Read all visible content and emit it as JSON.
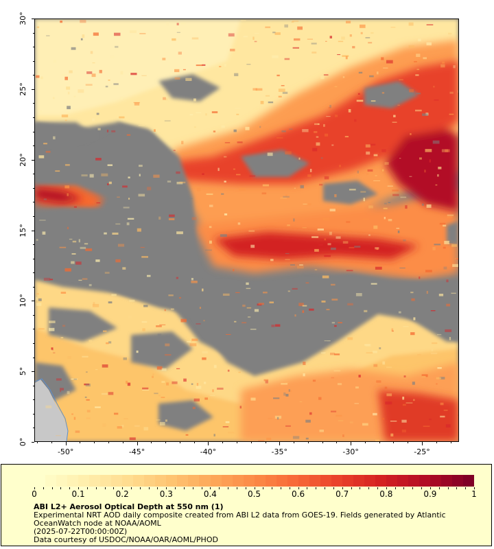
{
  "map": {
    "y_axis": {
      "labels": [
        "0°",
        "5°",
        "10°",
        "15°",
        "20°",
        "25°",
        "30°"
      ],
      "range": [
        0,
        30
      ]
    },
    "x_axis": {
      "labels": [
        "-50°",
        "-45°",
        "-40°",
        "-35°",
        "-30°",
        "-25°"
      ],
      "range": [
        -52.2,
        -22.4
      ]
    },
    "colors": {
      "no_data": "#808080",
      "land": "#c8c8c8",
      "coast": "#5b8fd0"
    }
  },
  "legend": {
    "colorbar_ticks": [
      "0",
      "0.1",
      "0.2",
      "0.3",
      "0.4",
      "0.5",
      "0.6",
      "0.7",
      "0.8",
      "0.9",
      "1"
    ],
    "colorbar_range": [
      0,
      1
    ],
    "colorbar_colors": [
      "#ffffcc",
      "#ffefae",
      "#ffde92",
      "#fec673",
      "#fda95a",
      "#fc8a46",
      "#f76836",
      "#e9402a",
      "#d32021",
      "#b20c25",
      "#800026"
    ],
    "background": "#ffffcc",
    "title": "ABI L2+ Aerosol Optical Depth at 550 nm (1)",
    "description_line1": "Experimental NRT AOD daily composite created from ABI L2 data from GOES-19. Fields generated by Atlantic",
    "description_line2": "OceanWatch node at NOAA/AOML",
    "date": "(2025-07-22T00:00:00Z)",
    "credit": "Data courtesy of USDOC/NOAA/OAR/AOML/PHOD"
  }
}
